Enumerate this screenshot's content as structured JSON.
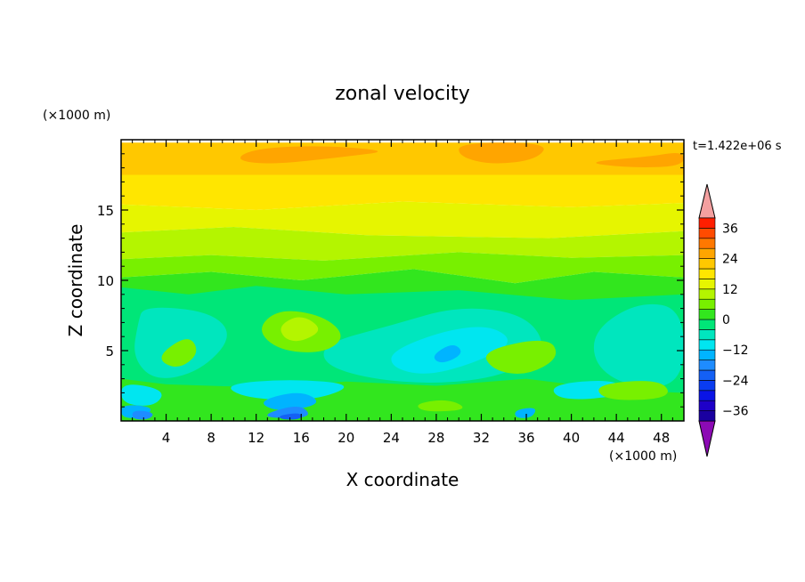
{
  "chart_data": {
    "type": "heatmap",
    "title": "zonal velocity",
    "xlabel": "X coordinate",
    "ylabel": "Z coordinate",
    "x_unit": "(×1000 m)",
    "y_unit": "(×1000 m)",
    "time_label": "t=1.422e+06 s",
    "xlim": [
      0,
      50
    ],
    "ylim": [
      0,
      20
    ],
    "x_ticks": [
      4,
      8,
      12,
      16,
      20,
      24,
      28,
      32,
      36,
      40,
      44,
      48
    ],
    "y_ticks": [
      5,
      10,
      15
    ],
    "colorbar": {
      "levels": [
        -40,
        -36,
        -32,
        -28,
        -24,
        -20,
        -16,
        -12,
        -8,
        -4,
        0,
        4,
        8,
        12,
        16,
        20,
        24,
        28,
        32,
        36,
        40
      ],
      "labels": [
        "36",
        "24",
        "12",
        "0",
        "−12",
        "−24",
        "−36"
      ],
      "label_values": [
        36,
        24,
        12,
        0,
        -12,
        -24,
        -36
      ],
      "colors": [
        "#1a00a0",
        "#1e00c8",
        "#0a14e6",
        "#0a3cf0",
        "#1460f5",
        "#1e8cff",
        "#00b4ff",
        "#00e6f0",
        "#00e6be",
        "#00e678",
        "#32e61e",
        "#78f000",
        "#b4f500",
        "#e6f500",
        "#ffe600",
        "#ffc800",
        "#ffa500",
        "#ff7800",
        "#ff4b00",
        "#ff1e00"
      ],
      "under_color": "#8c0ab4",
      "over_color": "#f4a0a0"
    },
    "regions": [
      {
        "level": 20,
        "points": [
          [
            0,
            19.8
          ],
          [
            50,
            19.8
          ],
          [
            50,
            17.5
          ],
          [
            0,
            17.5
          ]
        ],
        "value": 20
      },
      {
        "level": 24,
        "points": [
          [
            13,
            18.2
          ],
          [
            20,
            18.8
          ],
          [
            24,
            19.2
          ],
          [
            18,
            19.6
          ],
          [
            12,
            19.4
          ],
          [
            10,
            18.6
          ]
        ],
        "value": 26
      },
      {
        "level": 24,
        "points": [
          [
            30,
            19.8
          ],
          [
            38,
            19.8
          ],
          [
            37,
            18.6
          ],
          [
            33,
            18.2
          ],
          [
            30,
            18.8
          ]
        ],
        "value": 26
      },
      {
        "level": 24,
        "points": [
          [
            41,
            18.4
          ],
          [
            47,
            18.8
          ],
          [
            50,
            19.2
          ],
          [
            50,
            18.1
          ],
          [
            45,
            18.0
          ]
        ],
        "value": 24
      },
      {
        "level": 16,
        "points": [
          [
            0,
            17.5
          ],
          [
            50,
            17.5
          ],
          [
            50,
            15.5
          ],
          [
            40,
            15.2
          ],
          [
            25,
            15.6
          ],
          [
            12,
            15.0
          ],
          [
            0,
            15.4
          ]
        ],
        "value": 16
      },
      {
        "level": 12,
        "points": [
          [
            0,
            15.4
          ],
          [
            12,
            15.0
          ],
          [
            25,
            15.6
          ],
          [
            40,
            15.2
          ],
          [
            50,
            15.5
          ],
          [
            50,
            13.5
          ],
          [
            38,
            13.0
          ],
          [
            22,
            13.2
          ],
          [
            10,
            13.8
          ],
          [
            0,
            13.4
          ]
        ],
        "value": 12
      },
      {
        "level": 8,
        "points": [
          [
            0,
            13.4
          ],
          [
            10,
            13.8
          ],
          [
            22,
            13.2
          ],
          [
            38,
            13.0
          ],
          [
            50,
            13.5
          ],
          [
            50,
            11.8
          ],
          [
            40,
            11.6
          ],
          [
            30,
            12.0
          ],
          [
            18,
            11.4
          ],
          [
            8,
            11.8
          ],
          [
            0,
            11.5
          ]
        ],
        "value": 8
      },
      {
        "level": 4,
        "points": [
          [
            0,
            11.5
          ],
          [
            8,
            11.8
          ],
          [
            18,
            11.4
          ],
          [
            30,
            12.0
          ],
          [
            40,
            11.6
          ],
          [
            50,
            11.8
          ],
          [
            50,
            10.2
          ],
          [
            42,
            10.6
          ],
          [
            35,
            9.8
          ],
          [
            26,
            10.8
          ],
          [
            16,
            10.0
          ],
          [
            8,
            10.6
          ],
          [
            0,
            10.2
          ]
        ],
        "value": 4
      },
      {
        "level": 0,
        "points": [
          [
            0,
            10.2
          ],
          [
            8,
            10.6
          ],
          [
            16,
            10.0
          ],
          [
            26,
            10.8
          ],
          [
            35,
            9.8
          ],
          [
            42,
            10.6
          ],
          [
            50,
            10.2
          ],
          [
            50,
            0
          ],
          [
            0,
            0
          ]
        ],
        "value": 2
      },
      {
        "level": -4,
        "points": [
          [
            0,
            9.5
          ],
          [
            6,
            9.0
          ],
          [
            12,
            9.6
          ],
          [
            20,
            9.0
          ],
          [
            30,
            9.3
          ],
          [
            40,
            8.6
          ],
          [
            50,
            9.0
          ],
          [
            50,
            2
          ],
          [
            44,
            2.2
          ],
          [
            36,
            3.0
          ],
          [
            28,
            2.5
          ],
          [
            20,
            2.8
          ],
          [
            12,
            2.4
          ],
          [
            4,
            2.6
          ],
          [
            0,
            3.0
          ]
        ],
        "value": -4
      },
      {
        "level": -8,
        "points": [
          [
            2,
            8.2
          ],
          [
            8,
            7.8
          ],
          [
            10,
            6.0
          ],
          [
            7,
            3.5
          ],
          [
            3,
            2.8
          ],
          [
            1,
            4.5
          ],
          [
            1.5,
            7.0
          ]
        ],
        "value": -8
      },
      {
        "level": -8,
        "points": [
          [
            18,
            5.5
          ],
          [
            24,
            6.8
          ],
          [
            30,
            8.2
          ],
          [
            36,
            7.6
          ],
          [
            38,
            5.0
          ],
          [
            34,
            3.2
          ],
          [
            28,
            2.6
          ],
          [
            22,
            3.0
          ],
          [
            18,
            4.0
          ]
        ],
        "value": -8
      },
      {
        "level": -8,
        "points": [
          [
            42,
            6.5
          ],
          [
            46,
            8.5
          ],
          [
            50,
            8.0
          ],
          [
            50,
            2.5
          ],
          [
            45,
            2.4
          ],
          [
            42,
            4.0
          ]
        ],
        "value": -8
      },
      {
        "level": -12,
        "points": [
          [
            24,
            5.0
          ],
          [
            29,
            6.5
          ],
          [
            33,
            6.8
          ],
          [
            35,
            5.5
          ],
          [
            31,
            4.0
          ],
          [
            27,
            3.2
          ],
          [
            24,
            3.8
          ]
        ],
        "value": -12
      },
      {
        "level": -12,
        "points": [
          [
            9,
            2.6
          ],
          [
            15,
            3.0
          ],
          [
            21,
            2.6
          ],
          [
            17,
            1.4
          ],
          [
            11,
            1.6
          ]
        ],
        "value": -12
      },
      {
        "level": -12,
        "points": [
          [
            0,
            2.8
          ],
          [
            4,
            2.2
          ],
          [
            3,
            1.0
          ],
          [
            0,
            1.2
          ]
        ],
        "value": -12
      },
      {
        "level": -12,
        "points": [
          [
            38,
            2.6
          ],
          [
            44,
            3.0
          ],
          [
            45,
            1.8
          ],
          [
            39,
            1.4
          ]
        ],
        "value": -12
      },
      {
        "level": -16,
        "points": [
          [
            27.5,
            4.6
          ],
          [
            29.5,
            5.6
          ],
          [
            30.5,
            4.8
          ],
          [
            28.5,
            4.0
          ]
        ],
        "value": -16
      },
      {
        "level": -16,
        "points": [
          [
            12,
            1.4
          ],
          [
            16,
            2.2
          ],
          [
            18,
            1.2
          ],
          [
            14,
            0.6
          ]
        ],
        "value": -16
      },
      {
        "level": -16,
        "points": [
          [
            0,
            1.2
          ],
          [
            3,
            1.0
          ],
          [
            2,
            0.2
          ],
          [
            0,
            0.2
          ]
        ],
        "value": -16
      },
      {
        "level": -16,
        "points": [
          [
            35,
            0.8
          ],
          [
            37,
            1.0
          ],
          [
            36.5,
            0.2
          ],
          [
            35,
            0.2
          ]
        ],
        "value": -16
      },
      {
        "level": -20,
        "points": [
          [
            13,
            0.6
          ],
          [
            16,
            1.2
          ],
          [
            17,
            0.2
          ],
          [
            13,
            0.2
          ]
        ],
        "value": -20
      },
      {
        "level": -20,
        "points": [
          [
            1,
            0.8
          ],
          [
            3,
            0.6
          ],
          [
            2.5,
            0.1
          ],
          [
            1,
            0.1
          ]
        ],
        "value": -20
      },
      {
        "level": -24,
        "points": [
          [
            14,
            0.4
          ],
          [
            16,
            0.6
          ],
          [
            16,
            0.1
          ],
          [
            14.2,
            0.1
          ]
        ],
        "value": -24
      },
      {
        "level": 4,
        "points": [
          [
            12,
            6.5
          ],
          [
            14,
            8.0
          ],
          [
            18,
            7.5
          ],
          [
            20,
            6.0
          ],
          [
            18,
            4.8
          ],
          [
            14,
            5.0
          ]
        ],
        "value": 4
      },
      {
        "level": 8,
        "points": [
          [
            14,
            6.8
          ],
          [
            16,
            7.6
          ],
          [
            18,
            6.5
          ],
          [
            16,
            5.6
          ],
          [
            14.5,
            5.8
          ]
        ],
        "value": 8
      },
      {
        "level": 4,
        "points": [
          [
            32,
            5.0
          ],
          [
            38,
            6.0
          ],
          [
            39,
            4.5
          ],
          [
            36,
            3.2
          ],
          [
            33,
            3.6
          ]
        ],
        "value": 4
      },
      {
        "level": 4,
        "points": [
          [
            3,
            4.5
          ],
          [
            6,
            6.2
          ],
          [
            7,
            4.8
          ],
          [
            5,
            3.6
          ]
        ],
        "value": 4
      },
      {
        "level": 4,
        "points": [
          [
            42,
            2.6
          ],
          [
            48,
            3.0
          ],
          [
            49,
            1.6
          ],
          [
            43,
            1.4
          ]
        ],
        "value": 4
      },
      {
        "level": 4,
        "points": [
          [
            26,
            1.2
          ],
          [
            29,
            1.6
          ],
          [
            31,
            0.8
          ],
          [
            27,
            0.6
          ]
        ],
        "value": 4
      }
    ]
  }
}
